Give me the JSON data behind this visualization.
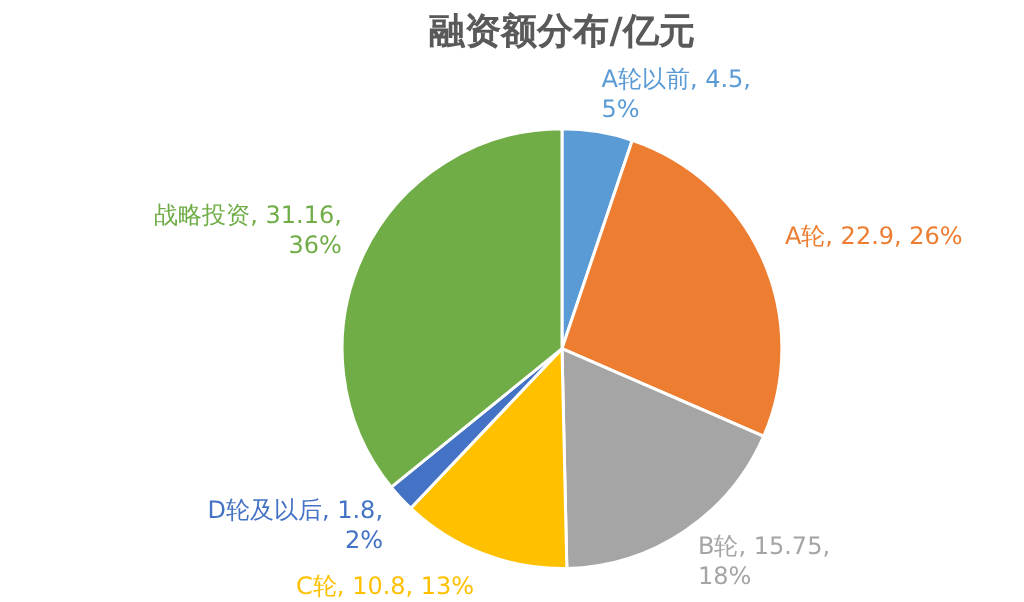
{
  "chart_data": {
    "type": "pie",
    "title": "融资额分布/亿元",
    "categories": [
      "A轮以前",
      "A轮",
      "B轮",
      "C轮",
      "D轮及以后",
      "战略投资"
    ],
    "values": [
      4.5,
      22.9,
      15.75,
      10.8,
      1.8,
      31.16
    ],
    "value_labels": [
      "4.5, 5%",
      "22.9, 26%",
      "15.75, 18%",
      "10.8, 13%",
      "1.8, 2%",
      "31.16, 36%"
    ],
    "colors": [
      "#5b9bd5",
      "#ed7d31",
      "#a5a5a5",
      "#ffc000",
      "#4472c4",
      "#70ad47"
    ],
    "legend": false
  }
}
